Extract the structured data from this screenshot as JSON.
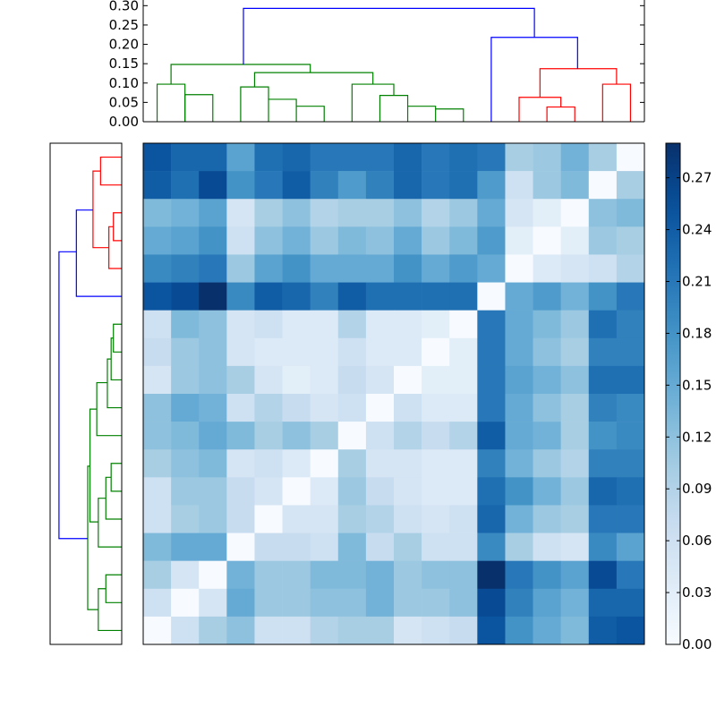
{
  "chart_data": [
    {
      "type": "dendrogram",
      "orientation": "top",
      "ylim": [
        0,
        0.31
      ],
      "yticks": [
        "0.00",
        "0.05",
        "0.10",
        "0.15",
        "0.20",
        "0.25",
        "0.30"
      ],
      "ytick_values": [
        0,
        0.05,
        0.1,
        0.15,
        0.2,
        0.25,
        0.3
      ],
      "link_colors": {
        "blue": "#0000ff",
        "green": "#008000",
        "red": "#ff0000"
      },
      "leaf_count": 18,
      "links": [
        {
          "x": [
            0.5,
            1.5
          ],
          "h": 0.097,
          "color": "green",
          "leaf_height": [
            0,
            0
          ],
          "children": [
            "leaf",
            "leaf"
          ]
        },
        {
          "x": [
            1.5,
            2.5
          ],
          "h": 0.07,
          "color": "green",
          "leaf_height": [
            0,
            0
          ]
        },
        {
          "x": [
            3.5,
            4.5
          ],
          "h": 0.09,
          "color": "green"
        },
        {
          "x": [
            4.5,
            5.5
          ],
          "h": 0.058,
          "color": "green"
        },
        {
          "x": [
            5.5,
            6.5
          ],
          "h": 0.04,
          "color": "green"
        },
        {
          "x": [
            7.5,
            8.5
          ],
          "h": 0.097,
          "color": "green"
        },
        {
          "x": [
            8.5,
            9.5
          ],
          "h": 0.068,
          "color": "green"
        },
        {
          "x": [
            9.5,
            10.5
          ],
          "h": 0.04,
          "color": "green"
        },
        {
          "x": [
            10.5,
            11.5
          ],
          "h": 0.033,
          "color": "green"
        },
        {
          "x": [
            13.5,
            14.5
          ],
          "h": 0.063,
          "color": "red"
        },
        {
          "x": [
            14.5,
            15.5
          ],
          "h": 0.038,
          "color": "red"
        },
        {
          "x": [
            16.5,
            17.5
          ],
          "h": 0.097,
          "color": "red"
        },
        {
          "x": [
            14.5,
            16.5
          ],
          "h": 0.137,
          "color": "red"
        },
        {
          "x": [
            1.5,
            5.5
          ],
          "h": 0.148,
          "color": "green"
        },
        {
          "x": [
            4.5,
            9.5
          ],
          "h": 0.127,
          "color": "green"
        },
        {
          "x": [
            12.5,
            15.5
          ],
          "h": 0.218,
          "color": "blue"
        },
        {
          "x": [
            3.5,
            14.5
          ],
          "h": 0.293,
          "color": "blue"
        }
      ]
    },
    {
      "type": "heatmap",
      "rows": 18,
      "cols": 18,
      "colorscale": "Blues",
      "colorbar": {
        "min": 0.0,
        "max": 0.29,
        "ticks": [
          "0.00",
          "0.03",
          "0.06",
          "0.09",
          "0.12",
          "0.15",
          "0.18",
          "0.21",
          "0.24",
          "0.27"
        ],
        "tick_values": [
          0,
          0.03,
          0.06,
          0.09,
          0.12,
          0.15,
          0.18,
          0.21,
          0.24,
          0.27
        ]
      },
      "values": [
        [
          0.25,
          0.23,
          0.23,
          0.16,
          0.22,
          0.23,
          0.21,
          0.21,
          0.21,
          0.23,
          0.21,
          0.22,
          0.21,
          0.1,
          0.11,
          0.14,
          0.1,
          0.0
        ],
        [
          0.24,
          0.22,
          0.26,
          0.18,
          0.21,
          0.24,
          0.2,
          0.17,
          0.2,
          0.23,
          0.21,
          0.22,
          0.17,
          0.06,
          0.11,
          0.13,
          0.0,
          0.1
        ],
        [
          0.13,
          0.14,
          0.16,
          0.05,
          0.1,
          0.12,
          0.09,
          0.1,
          0.1,
          0.12,
          0.09,
          0.11,
          0.15,
          0.05,
          0.03,
          0.0,
          0.12,
          0.13
        ],
        [
          0.15,
          0.16,
          0.18,
          0.06,
          0.12,
          0.14,
          0.11,
          0.13,
          0.12,
          0.15,
          0.11,
          0.13,
          0.17,
          0.03,
          0.0,
          0.03,
          0.11,
          0.1
        ],
        [
          0.19,
          0.2,
          0.21,
          0.11,
          0.16,
          0.18,
          0.15,
          0.15,
          0.15,
          0.18,
          0.15,
          0.17,
          0.15,
          0.0,
          0.04,
          0.05,
          0.06,
          0.09
        ],
        [
          0.25,
          0.26,
          0.29,
          0.19,
          0.24,
          0.23,
          0.2,
          0.24,
          0.22,
          0.22,
          0.22,
          0.22,
          0.0,
          0.15,
          0.17,
          0.14,
          0.18,
          0.21
        ],
        [
          0.06,
          0.13,
          0.12,
          0.05,
          0.06,
          0.04,
          0.04,
          0.09,
          0.04,
          0.04,
          0.03,
          0.0,
          0.21,
          0.15,
          0.13,
          0.11,
          0.22,
          0.2
        ],
        [
          0.07,
          0.11,
          0.12,
          0.05,
          0.04,
          0.04,
          0.04,
          0.06,
          0.04,
          0.04,
          0.0,
          0.03,
          0.21,
          0.15,
          0.12,
          0.1,
          0.2,
          0.2
        ],
        [
          0.05,
          0.11,
          0.12,
          0.1,
          0.05,
          0.03,
          0.04,
          0.07,
          0.05,
          0.0,
          0.03,
          0.03,
          0.21,
          0.16,
          0.14,
          0.12,
          0.22,
          0.22
        ],
        [
          0.12,
          0.15,
          0.14,
          0.06,
          0.09,
          0.07,
          0.05,
          0.06,
          0.0,
          0.06,
          0.04,
          0.04,
          0.21,
          0.15,
          0.12,
          0.1,
          0.2,
          0.19
        ],
        [
          0.12,
          0.13,
          0.15,
          0.13,
          0.1,
          0.12,
          0.1,
          0.0,
          0.06,
          0.09,
          0.07,
          0.09,
          0.24,
          0.15,
          0.14,
          0.1,
          0.18,
          0.19
        ],
        [
          0.1,
          0.12,
          0.13,
          0.05,
          0.06,
          0.04,
          0.0,
          0.1,
          0.05,
          0.05,
          0.04,
          0.04,
          0.2,
          0.14,
          0.11,
          0.09,
          0.2,
          0.2
        ],
        [
          0.06,
          0.11,
          0.11,
          0.07,
          0.05,
          0.0,
          0.04,
          0.11,
          0.07,
          0.05,
          0.04,
          0.04,
          0.22,
          0.18,
          0.14,
          0.11,
          0.23,
          0.22
        ],
        [
          0.06,
          0.1,
          0.11,
          0.07,
          0.0,
          0.05,
          0.05,
          0.1,
          0.09,
          0.06,
          0.05,
          0.06,
          0.23,
          0.14,
          0.11,
          0.1,
          0.21,
          0.21
        ],
        [
          0.13,
          0.15,
          0.15,
          0.0,
          0.07,
          0.07,
          0.06,
          0.13,
          0.07,
          0.1,
          0.06,
          0.06,
          0.19,
          0.1,
          0.06,
          0.05,
          0.19,
          0.16
        ],
        [
          0.1,
          0.05,
          0.0,
          0.14,
          0.11,
          0.11,
          0.13,
          0.13,
          0.14,
          0.11,
          0.12,
          0.12,
          0.29,
          0.21,
          0.18,
          0.16,
          0.26,
          0.21
        ],
        [
          0.06,
          0.0,
          0.05,
          0.15,
          0.11,
          0.11,
          0.12,
          0.12,
          0.14,
          0.11,
          0.11,
          0.12,
          0.26,
          0.2,
          0.16,
          0.14,
          0.23,
          0.23
        ],
        [
          0.0,
          0.06,
          0.1,
          0.12,
          0.06,
          0.06,
          0.09,
          0.1,
          0.1,
          0.05,
          0.06,
          0.07,
          0.25,
          0.18,
          0.15,
          0.13,
          0.24,
          0.25
        ]
      ]
    },
    {
      "type": "dendrogram",
      "orientation": "left",
      "leaf_count": 18,
      "link_colors": {
        "blue": "#0000ff",
        "green": "#008000",
        "red": "#ff0000"
      },
      "links": [
        {
          "y": [
            0.5,
            1.5
          ],
          "h": 0.028,
          "color": "red"
        },
        {
          "y": [
            2.5,
            3.5
          ],
          "h": 0.011,
          "color": "red"
        },
        {
          "y": [
            3.0,
            4.5
          ],
          "h": 0.017,
          "color": "red"
        },
        {
          "y": [
            1.0,
            3.75
          ],
          "h": 0.038,
          "color": "red"
        },
        {
          "y": [
            2.4,
            5.5
          ],
          "h": 0.062,
          "color": "blue"
        },
        {
          "y": [
            6.5,
            7.5
          ],
          "h": 0.011,
          "color": "green"
        },
        {
          "y": [
            7.0,
            8.5
          ],
          "h": 0.014,
          "color": "green"
        },
        {
          "y": [
            7.75,
            9.5
          ],
          "h": 0.019,
          "color": "green"
        },
        {
          "y": [
            8.6,
            10.5
          ],
          "h": 0.031,
          "color": "green"
        },
        {
          "y": [
            11.5,
            12.5
          ],
          "h": 0.014,
          "color": "green"
        },
        {
          "y": [
            12.0,
            13.5
          ],
          "h": 0.021,
          "color": "green"
        },
        {
          "y": [
            12.75,
            14.5
          ],
          "h": 0.031,
          "color": "green"
        },
        {
          "y": [
            9.5,
            13.6
          ],
          "h": 0.044,
          "color": "green"
        },
        {
          "y": [
            15.5,
            16.5
          ],
          "h": 0.021,
          "color": "green"
        },
        {
          "y": [
            16.0,
            17.5
          ],
          "h": 0.031,
          "color": "green"
        },
        {
          "y": [
            11.5,
            16.75
          ],
          "h": 0.044,
          "color": "green"
        },
        {
          "y": [
            3.9,
            14.1
          ],
          "h": 0.088,
          "color": "blue"
        }
      ]
    }
  ]
}
